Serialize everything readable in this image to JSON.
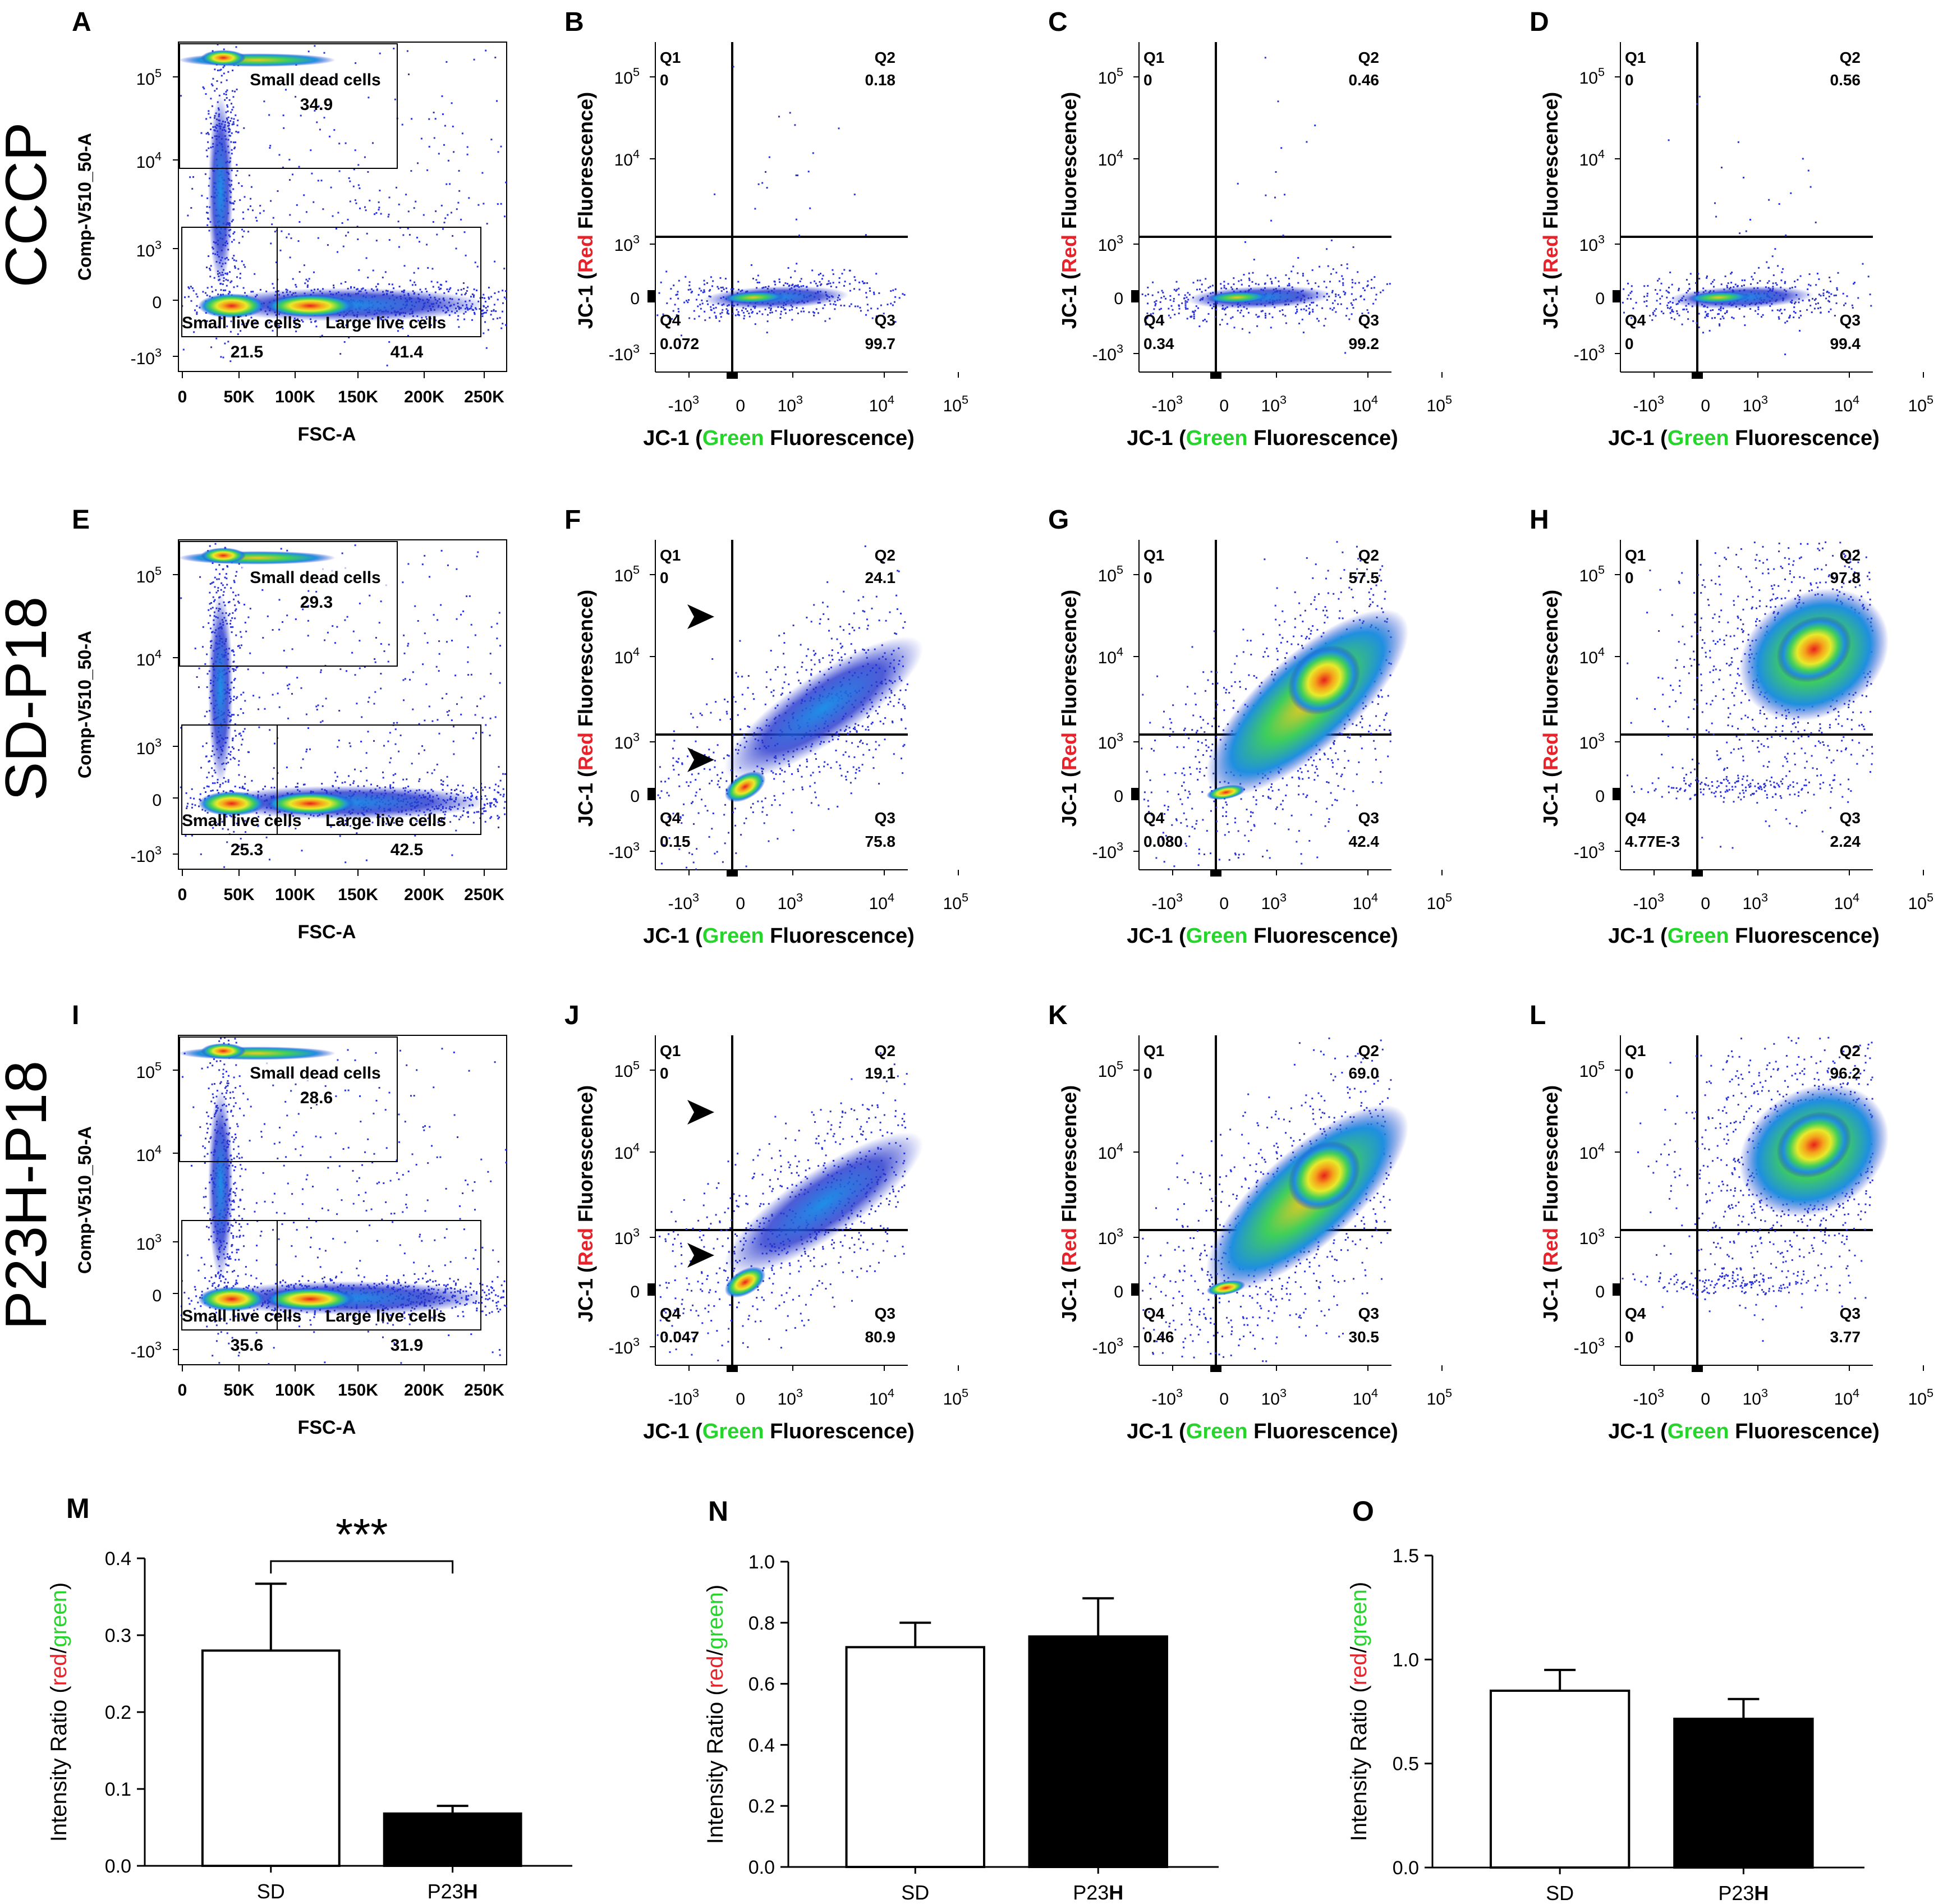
{
  "row_labels": [
    "CCCP",
    "SD-P18",
    "P23H-P18"
  ],
  "panel_letters": [
    "A",
    "B",
    "C",
    "D",
    "E",
    "F",
    "G",
    "H",
    "I",
    "J",
    "K",
    "L",
    "M",
    "N",
    "O"
  ],
  "scatter_axis": {
    "yticks_html": [
      "10^5",
      "10^4",
      "10^3",
      "0",
      "-10^3"
    ],
    "yticks": [
      {
        "base": "10",
        "exp": "5"
      },
      {
        "base": "10",
        "exp": "4"
      },
      {
        "base": "10",
        "exp": "3"
      },
      {
        "base": "0",
        "exp": ""
      },
      {
        "base": "-10",
        "exp": "3"
      }
    ],
    "xticks": [
      {
        "base": "-10",
        "exp": "3"
      },
      {
        "base": "0",
        "exp": ""
      },
      {
        "base": "10",
        "exp": "3"
      },
      {
        "base": "10",
        "exp": "4"
      },
      {
        "base": "10",
        "exp": "5"
      }
    ],
    "ylabel_pre": "JC-1 (",
    "ylabel_color_word": "Red",
    "ylabel_post": " Fluorescence)",
    "xlabel_pre": "JC-1 (",
    "xlabel_color_word": "Green",
    "xlabel_post": " Fluorescence)",
    "red": "#e8222a",
    "green": "#27d42b"
  },
  "fsc_axis": {
    "xticks": [
      "0",
      "50K",
      "100K",
      "150K",
      "200K",
      "250K"
    ],
    "xlabel": "FSC-A",
    "ylabel": "Comp-V510_50-A",
    "dead_gate_label": "Small dead cells",
    "small_live_label": "Small live cells",
    "large_live_label": "Large live cells"
  },
  "fsc_panels": [
    {
      "letter": "A",
      "dead": "34.9",
      "small": "21.5",
      "large": "41.4"
    },
    {
      "letter": "E",
      "dead": "29.3",
      "small": "25.3",
      "large": "42.5"
    },
    {
      "letter": "I",
      "dead": "28.6",
      "small": "35.6",
      "large": "31.9"
    }
  ],
  "jc1_panels": [
    {
      "letter": "B",
      "q1": "0",
      "q2": "0.18",
      "q3": "99.7",
      "q4": "0.072",
      "arrows": false
    },
    {
      "letter": "C",
      "q1": "0",
      "q2": "0.46",
      "q3": "99.2",
      "q4": "0.34",
      "arrows": false
    },
    {
      "letter": "D",
      "q1": "0",
      "q2": "0.56",
      "q3": "99.4",
      "q4": "0",
      "arrows": false
    },
    {
      "letter": "F",
      "q1": "0",
      "q2": "24.1",
      "q3": "75.8",
      "q4": "0.15",
      "arrows": true
    },
    {
      "letter": "G",
      "q1": "0",
      "q2": "57.5",
      "q3": "42.4",
      "q4": "0.080",
      "arrows": false
    },
    {
      "letter": "H",
      "q1": "0",
      "q2": "97.8",
      "q3": "2.24",
      "q4": "4.77E-3",
      "arrows": false
    },
    {
      "letter": "J",
      "q1": "0",
      "q2": "19.1",
      "q3": "80.9",
      "q4": "0.047",
      "arrows": true
    },
    {
      "letter": "K",
      "q1": "0",
      "q2": "69.0",
      "q3": "30.5",
      "q4": "0.46",
      "arrows": false
    },
    {
      "letter": "L",
      "q1": "0",
      "q2": "96.2",
      "q3": "3.77",
      "q4": "0",
      "arrows": false
    }
  ],
  "quadrant_names": {
    "q1": "Q1",
    "q2": "Q2",
    "q3": "Q3",
    "q4": "Q4"
  },
  "chart_data": [
    {
      "type": "bar",
      "panel": "M",
      "categories": [
        "SD",
        "P23H"
      ],
      "category_display": [
        {
          "pre": "SD",
          "bold": ""
        },
        {
          "pre": "P23",
          "bold": "H"
        }
      ],
      "values": [
        0.28,
        0.068
      ],
      "errors": [
        0.087,
        0.01
      ],
      "fills": [
        "#ffffff",
        "#000000"
      ],
      "ylim": [
        0,
        0.4
      ],
      "yticks": [
        "0.0",
        "0.1",
        "0.2",
        "0.3",
        "0.4"
      ],
      "ylabel_pre": "Intensity Ratio (",
      "ylabel_red": "red",
      "ylabel_sep": "/",
      "ylabel_green": "green",
      "ylabel_post": ")",
      "significance": "***"
    },
    {
      "type": "bar",
      "panel": "N",
      "categories": [
        "SD",
        "P23H"
      ],
      "category_display": [
        {
          "pre": "SD",
          "bold": ""
        },
        {
          "pre": "P23",
          "bold": "H"
        }
      ],
      "values": [
        0.72,
        0.755
      ],
      "errors": [
        0.08,
        0.125
      ],
      "fills": [
        "#ffffff",
        "#000000"
      ],
      "ylim": [
        0,
        1.0
      ],
      "yticks": [
        "0.0",
        "0.2",
        "0.4",
        "0.6",
        "0.8",
        "1.0"
      ],
      "ylabel_pre": "Intensity Ratio (",
      "ylabel_red": "red",
      "ylabel_sep": "/",
      "ylabel_green": "green",
      "ylabel_post": ")",
      "significance": ""
    },
    {
      "type": "bar",
      "panel": "O",
      "categories": [
        "SD",
        "P23H"
      ],
      "category_display": [
        {
          "pre": "SD",
          "bold": ""
        },
        {
          "pre": "P23",
          "bold": "H"
        }
      ],
      "values": [
        0.85,
        0.715
      ],
      "errors": [
        0.1,
        0.095
      ],
      "fills": [
        "#ffffff",
        "#000000"
      ],
      "ylim": [
        0,
        1.5
      ],
      "yticks": [
        "0.0",
        "0.5",
        "1.0",
        "1.5"
      ],
      "ylabel_pre": "Intensity Ratio (",
      "ylabel_red": "red",
      "ylabel_sep": "/",
      "ylabel_green": "green",
      "ylabel_post": ")",
      "significance": ""
    }
  ]
}
